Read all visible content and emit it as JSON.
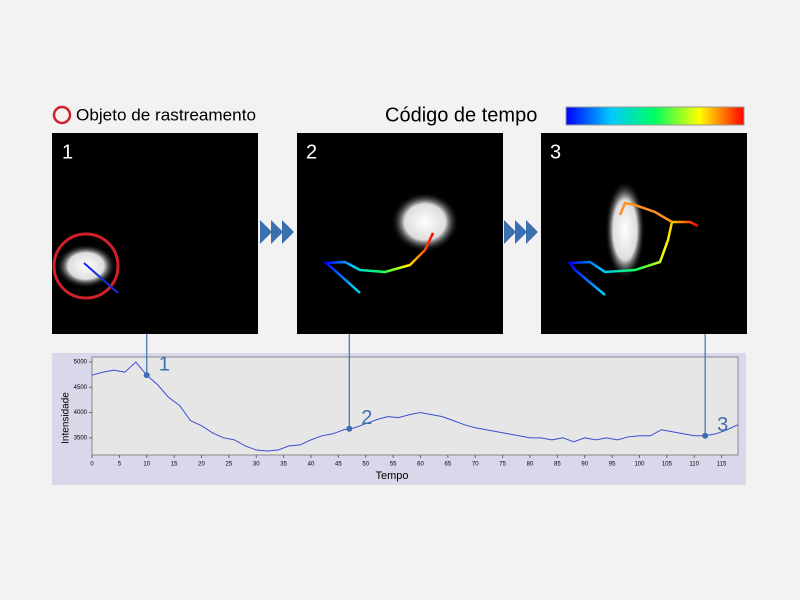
{
  "legend": {
    "tracking_object": "Objeto de rastreamento",
    "time_code": "Código de tempo"
  },
  "panels": [
    "1",
    "2",
    "3"
  ],
  "chart_data": {
    "type": "line",
    "xlabel": "Tempo",
    "ylabel": "Intensidade",
    "x": [
      0,
      2,
      4,
      6,
      8,
      10,
      12,
      14,
      16,
      18,
      20,
      22,
      24,
      26,
      28,
      30,
      32,
      34,
      36,
      38,
      40,
      42,
      44,
      46,
      48,
      50,
      52,
      54,
      56,
      58,
      60,
      62,
      64,
      66,
      68,
      70,
      72,
      74,
      76,
      78,
      80,
      82,
      84,
      86,
      88,
      90,
      92,
      94,
      96,
      98,
      100,
      102,
      104,
      106,
      108,
      110,
      112,
      114,
      116,
      118
    ],
    "series": [
      {
        "color": "#3a4fd0",
        "values": [
          4740,
          4800,
          4840,
          4800,
          5000,
          4740,
          4550,
          4300,
          4140,
          3840,
          3740,
          3600,
          3500,
          3460,
          3340,
          3260,
          3240,
          3260,
          3340,
          3360,
          3460,
          3540,
          3580,
          3660,
          3700,
          3780,
          3860,
          3920,
          3900,
          3960,
          4000,
          3960,
          3920,
          3840,
          3760,
          3700,
          3660,
          3620,
          3580,
          3540,
          3500,
          3500,
          3460,
          3500,
          3420,
          3500,
          3460,
          3500,
          3460,
          3520,
          3540,
          3540,
          3660,
          3620,
          3580,
          3540,
          3540,
          3580,
          3660,
          3760
        ]
      }
    ],
    "markers": [
      {
        "label": "1",
        "x": 10,
        "y": 4740
      },
      {
        "label": "2",
        "x": 47,
        "y": 3680
      },
      {
        "label": "3",
        "x": 112,
        "y": 3540
      }
    ],
    "xlim": [
      0,
      118
    ],
    "ylim": [
      3160,
      5100
    ],
    "xticks": [
      0,
      5,
      10,
      15,
      20,
      25,
      30,
      35,
      40,
      45,
      50,
      55,
      60,
      65,
      70,
      75,
      80,
      85,
      90,
      95,
      100,
      105,
      110,
      115
    ],
    "yticks": [
      3500,
      4000,
      4500,
      5000
    ]
  }
}
